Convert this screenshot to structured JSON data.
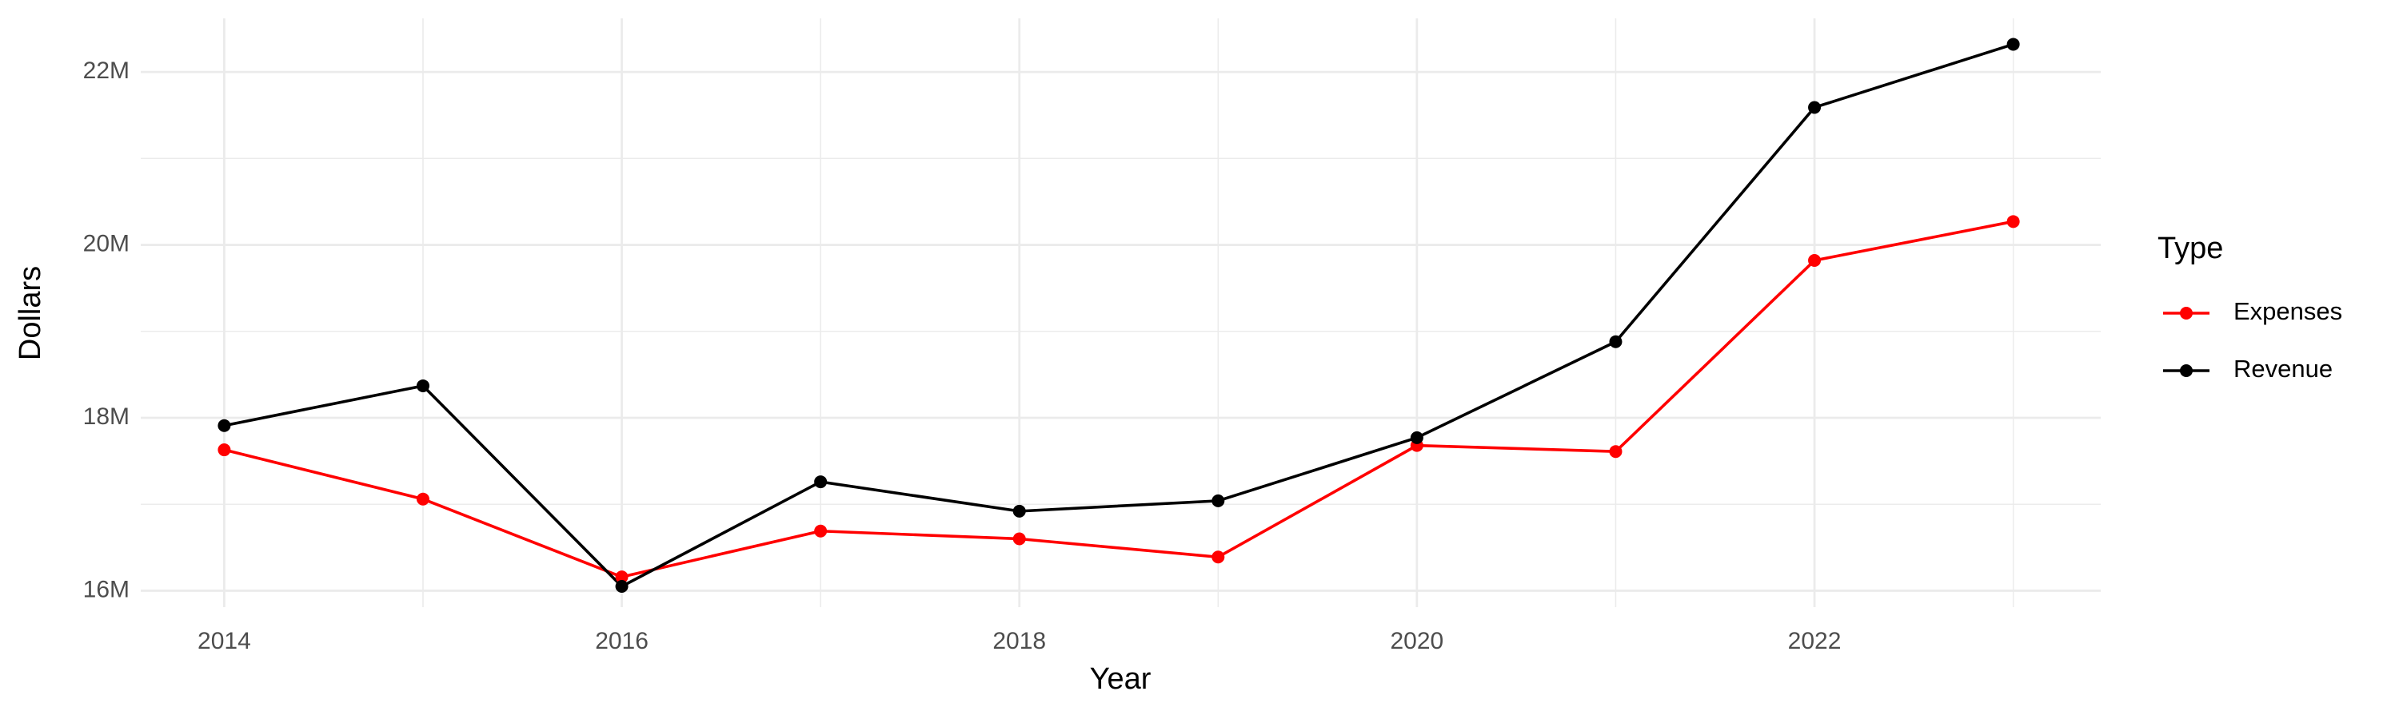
{
  "chart_data": {
    "type": "line",
    "x_label": "Year",
    "y_label": "Dollars",
    "x": [
      2014,
      2015,
      2016,
      2017,
      2018,
      2019,
      2020,
      2021,
      2022,
      2023
    ],
    "series": [
      {
        "name": "Expenses",
        "color": "#ff0000",
        "values": [
          17630000,
          17060000,
          16160000,
          16690000,
          16600000,
          16390000,
          17680000,
          17610000,
          19820000,
          20270000
        ]
      },
      {
        "name": "Revenue",
        "color": "#000000",
        "values": [
          17910000,
          18370000,
          16050000,
          17260000,
          16920000,
          17040000,
          17770000,
          18880000,
          21590000,
          22320000
        ]
      }
    ],
    "xlim": [
      2013.58,
      2023.44
    ],
    "xticks": [
      2014,
      2016,
      2018,
      2020,
      2022
    ],
    "ylim": [
      15810000,
      22620000
    ],
    "yticks": [
      {
        "value": 16000000,
        "label": "16M"
      },
      {
        "value": 18000000,
        "label": "18M"
      },
      {
        "value": 20000000,
        "label": "20M"
      },
      {
        "value": 22000000,
        "label": "22M"
      }
    ],
    "grid": true,
    "legend_title": "Type",
    "legend_position": "right"
  }
}
